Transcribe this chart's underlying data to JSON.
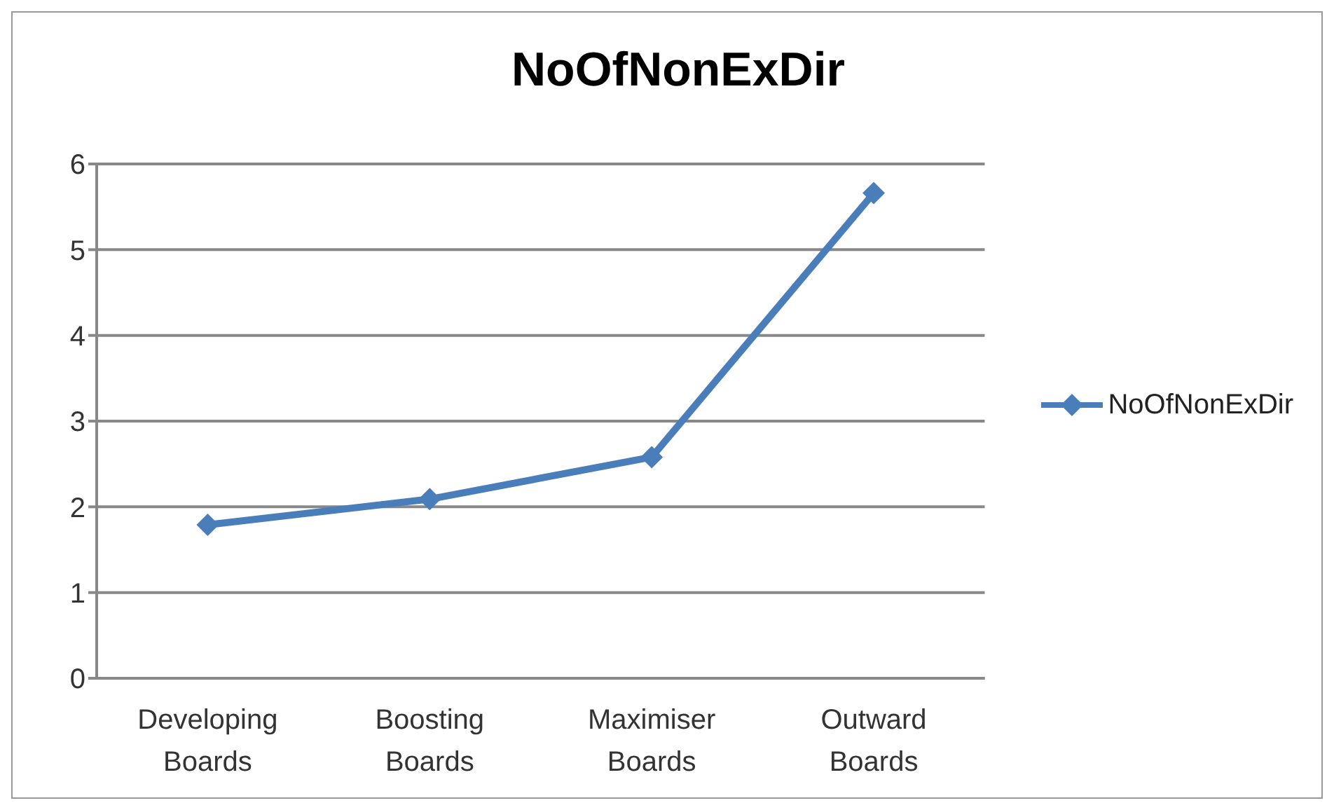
{
  "chart_data": {
    "type": "line",
    "title": "NoOfNonExDir",
    "categories": [
      "Developing Boards",
      "Boosting Boards",
      "Maximiser Boards",
      "Outward Boards"
    ],
    "series": [
      {
        "name": "NoOfNonExDir",
        "color": "#4a7ebb",
        "values": [
          1.79,
          2.09,
          2.58,
          5.66
        ]
      }
    ],
    "ylim": [
      0,
      6
    ],
    "yticks": [
      0,
      1,
      2,
      3,
      4,
      5,
      6
    ],
    "grid": "y",
    "legend": "right",
    "marker": "diamond",
    "line_style": "solid"
  }
}
